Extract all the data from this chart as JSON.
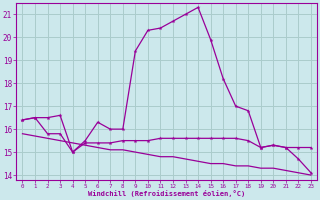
{
  "xlabel": "Windchill (Refroidissement éolien,°C)",
  "bg_color": "#cce8ec",
  "grid_color": "#aacccc",
  "line_color": "#990099",
  "x_values": [
    0,
    1,
    2,
    3,
    4,
    5,
    6,
    7,
    8,
    9,
    10,
    11,
    12,
    13,
    14,
    15,
    16,
    17,
    18,
    19,
    20,
    21,
    22,
    23
  ],
  "line1_y": [
    16.4,
    16.5,
    16.5,
    16.6,
    15.0,
    15.5,
    16.3,
    16.0,
    16.0,
    19.4,
    20.3,
    20.4,
    20.7,
    21.0,
    21.3,
    19.9,
    18.2,
    17.0,
    16.8,
    15.2,
    15.3,
    15.2,
    14.7,
    14.1
  ],
  "line2_y": [
    16.4,
    16.5,
    15.8,
    15.8,
    15.0,
    15.4,
    15.4,
    15.4,
    15.5,
    15.5,
    15.5,
    15.6,
    15.6,
    15.6,
    15.6,
    15.6,
    15.6,
    15.6,
    15.5,
    15.2,
    15.3,
    15.2,
    15.2,
    15.2
  ],
  "line3_y": [
    15.8,
    15.7,
    15.6,
    15.5,
    15.4,
    15.3,
    15.2,
    15.1,
    15.1,
    15.0,
    14.9,
    14.8,
    14.8,
    14.7,
    14.6,
    14.5,
    14.5,
    14.4,
    14.4,
    14.3,
    14.3,
    14.2,
    14.1,
    14.0
  ],
  "ylim": [
    13.8,
    21.5
  ],
  "yticks": [
    14,
    15,
    16,
    17,
    18,
    19,
    20,
    21
  ],
  "xlim": [
    -0.5,
    23.5
  ],
  "xticks": [
    0,
    1,
    2,
    3,
    4,
    5,
    6,
    7,
    8,
    9,
    10,
    11,
    12,
    13,
    14,
    15,
    16,
    17,
    18,
    19,
    20,
    21,
    22,
    23
  ],
  "xlabel_fontsize": 5.0,
  "ytick_fontsize": 5.5,
  "xtick_fontsize": 4.2
}
